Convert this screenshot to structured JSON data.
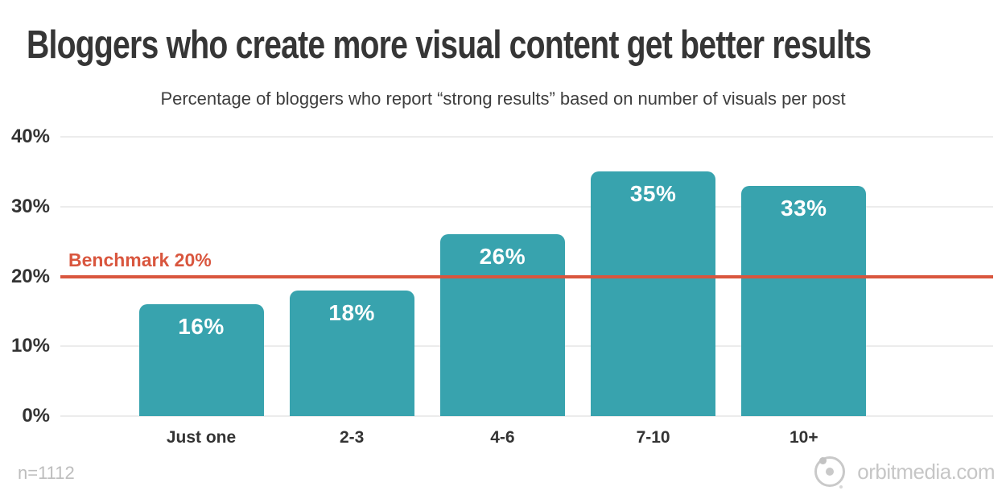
{
  "header": {
    "title": "Bloggers who create more visual content get better results",
    "subtitle": "Percentage of bloggers who report “strong results” based on number of visuals per post"
  },
  "chart_data": {
    "type": "bar",
    "title": "Bloggers who create more visual content get better results",
    "subtitle": "Percentage of bloggers who report “strong results” based on number of visuals per post",
    "categories": [
      "Just one",
      "2-3",
      "4-6",
      "7-10",
      "10+"
    ],
    "values": [
      16,
      18,
      26,
      35,
      33
    ],
    "value_labels": [
      "16%",
      "18%",
      "26%",
      "35%",
      "33%"
    ],
    "y_ticks": [
      "0%",
      "10%",
      "20%",
      "30%",
      "40%"
    ],
    "ylim": [
      0,
      40
    ],
    "xlabel": "",
    "ylabel": "",
    "grid": true,
    "legend_position": "none",
    "benchmark": {
      "value": 20,
      "label": "Benchmark 20%"
    },
    "colors": {
      "bar": "#38a3ae",
      "bar_label": "#ffffff",
      "benchmark": "#d9563e",
      "grid": "#ececec",
      "axis_text": "#333333"
    }
  },
  "footer": {
    "sample_size": "n=1112",
    "brand": "orbitmedia.com"
  }
}
